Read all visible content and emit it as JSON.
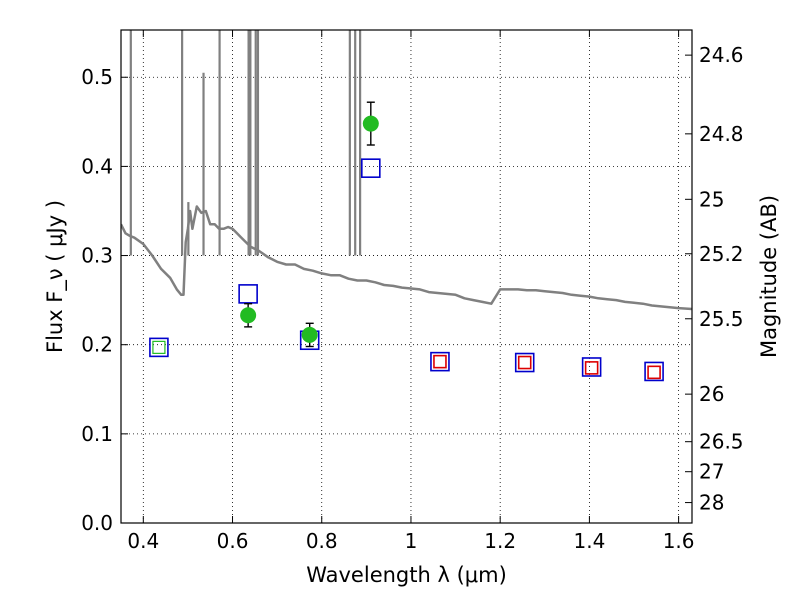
{
  "chart_data": {
    "type": "scatter",
    "xlabel": "Wavelength  λ (μm)",
    "ylabel": "Flux  F_ν  ( μJy )",
    "ylabel_right": "Magnitude (AB)",
    "xlim": [
      0.35,
      1.63
    ],
    "ylim": [
      0.0,
      0.553
    ],
    "grid": true,
    "x_ticks": [
      {
        "value": 0.4,
        "label": "0.4"
      },
      {
        "value": 0.6,
        "label": "0.6"
      },
      {
        "value": 0.8,
        "label": "0.8"
      },
      {
        "value": 1.0,
        "label": "1"
      },
      {
        "value": 1.2,
        "label": "1.2"
      },
      {
        "value": 1.4,
        "label": "1.4"
      },
      {
        "value": 1.6,
        "label": "1.6"
      }
    ],
    "y_ticks": [
      {
        "value": 0.0,
        "label": "0.0"
      },
      {
        "value": 0.1,
        "label": "0.1"
      },
      {
        "value": 0.2,
        "label": "0.2"
      },
      {
        "value": 0.3,
        "label": "0.3"
      },
      {
        "value": 0.4,
        "label": "0.4"
      },
      {
        "value": 0.5,
        "label": "0.5"
      }
    ],
    "right_ticks": [
      {
        "mag": 24.6,
        "label": "24.6"
      },
      {
        "mag": 24.8,
        "label": "24.8"
      },
      {
        "mag": 25.0,
        "label": "25"
      },
      {
        "mag": 25.2,
        "label": "25.2"
      },
      {
        "mag": 25.5,
        "label": "25.5"
      },
      {
        "mag": 26.0,
        "label": "26"
      },
      {
        "mag": 26.5,
        "label": "26.5"
      },
      {
        "mag": 27.0,
        "label": "27"
      },
      {
        "mag": 28.0,
        "label": "28"
      }
    ],
    "series": [
      {
        "kind": "line",
        "color": "#808080",
        "x": [
          0.35,
          0.36,
          0.37,
          0.38,
          0.4,
          0.42,
          0.44,
          0.46,
          0.475,
          0.485,
          0.49,
          0.495,
          0.5,
          0.505,
          0.51,
          0.52,
          0.53,
          0.54,
          0.55,
          0.56,
          0.57,
          0.58,
          0.59,
          0.6,
          0.61,
          0.62,
          0.64,
          0.66,
          0.68,
          0.7,
          0.72,
          0.74,
          0.76,
          0.78,
          0.8,
          0.82,
          0.84,
          0.86,
          0.88,
          0.9,
          0.92,
          0.94,
          0.96,
          0.98,
          1.0,
          1.02,
          1.04,
          1.06,
          1.08,
          1.1,
          1.12,
          1.14,
          1.16,
          1.18,
          1.2,
          1.22,
          1.24,
          1.26,
          1.28,
          1.3,
          1.32,
          1.34,
          1.36,
          1.38,
          1.4,
          1.42,
          1.44,
          1.46,
          1.48,
          1.5,
          1.52,
          1.54,
          1.56,
          1.58,
          1.6,
          1.63
        ],
        "y": [
          0.335,
          0.325,
          0.322,
          0.32,
          0.313,
          0.3,
          0.285,
          0.275,
          0.262,
          0.256,
          0.256,
          0.315,
          0.33,
          0.35,
          0.33,
          0.355,
          0.348,
          0.35,
          0.335,
          0.335,
          0.33,
          0.33,
          0.332,
          0.33,
          0.325,
          0.32,
          0.31,
          0.305,
          0.298,
          0.293,
          0.29,
          0.29,
          0.285,
          0.283,
          0.28,
          0.278,
          0.278,
          0.274,
          0.272,
          0.272,
          0.27,
          0.267,
          0.266,
          0.264,
          0.263,
          0.262,
          0.259,
          0.258,
          0.257,
          0.256,
          0.252,
          0.25,
          0.248,
          0.246,
          0.262,
          0.262,
          0.262,
          0.261,
          0.261,
          0.26,
          0.259,
          0.258,
          0.256,
          0.255,
          0.254,
          0.252,
          0.251,
          0.25,
          0.248,
          0.247,
          0.246,
          0.244,
          0.243,
          0.242,
          0.241,
          0.24
        ]
      },
      {
        "kind": "open-square",
        "color": "#0000cc",
        "x": [
          0.435,
          0.635,
          0.773,
          0.91,
          1.065,
          1.255,
          1.405,
          1.545
        ],
        "y": [
          0.197,
          0.257,
          0.205,
          0.398,
          0.181,
          0.18,
          0.175,
          0.17
        ]
      },
      {
        "kind": "open-square",
        "color": "#dd0000",
        "x": [
          1.065,
          1.255,
          1.405,
          1.545
        ],
        "y": [
          0.181,
          0.18,
          0.174,
          0.169
        ]
      },
      {
        "kind": "filled-circle-errorbar",
        "color": "#22bb22",
        "x": [
          0.635,
          0.773,
          0.91
        ],
        "y": [
          0.233,
          0.211,
          0.448
        ],
        "yerr": [
          0.013,
          0.013,
          0.024
        ]
      }
    ]
  }
}
